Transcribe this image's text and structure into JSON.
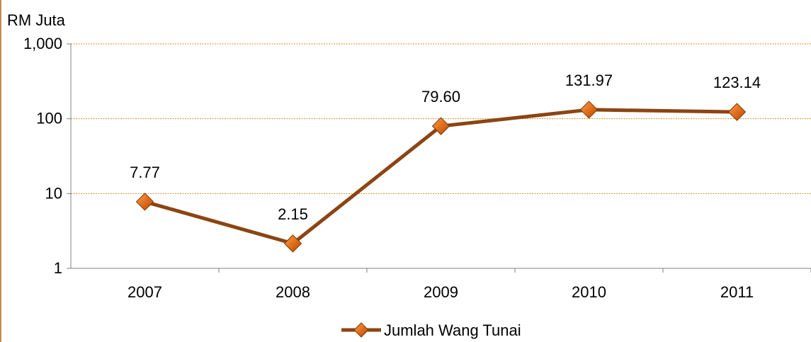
{
  "chart_data": {
    "type": "line",
    "scale": "log",
    "ylabel": "RM Juta",
    "ylim": [
      1,
      1000
    ],
    "y_ticks": [
      {
        "value": 1,
        "label": "1"
      },
      {
        "value": 10,
        "label": "10"
      },
      {
        "value": 100,
        "label": "100"
      },
      {
        "value": 1000,
        "label": "1,000"
      }
    ],
    "categories": [
      "2007",
      "2008",
      "2009",
      "2010",
      "2011"
    ],
    "series": [
      {
        "name": "Jumlah Wang Tunai",
        "values": [
          7.77,
          2.15,
          79.6,
          131.97,
          123.14
        ],
        "labels": [
          "7.77",
          "2.15",
          "79.60",
          "131.97",
          "123.14"
        ],
        "color": "#8b4513",
        "marker_color": "#e07020"
      }
    ],
    "grid": true,
    "grid_color": "#d98c2a",
    "legend": "bottom-center"
  }
}
